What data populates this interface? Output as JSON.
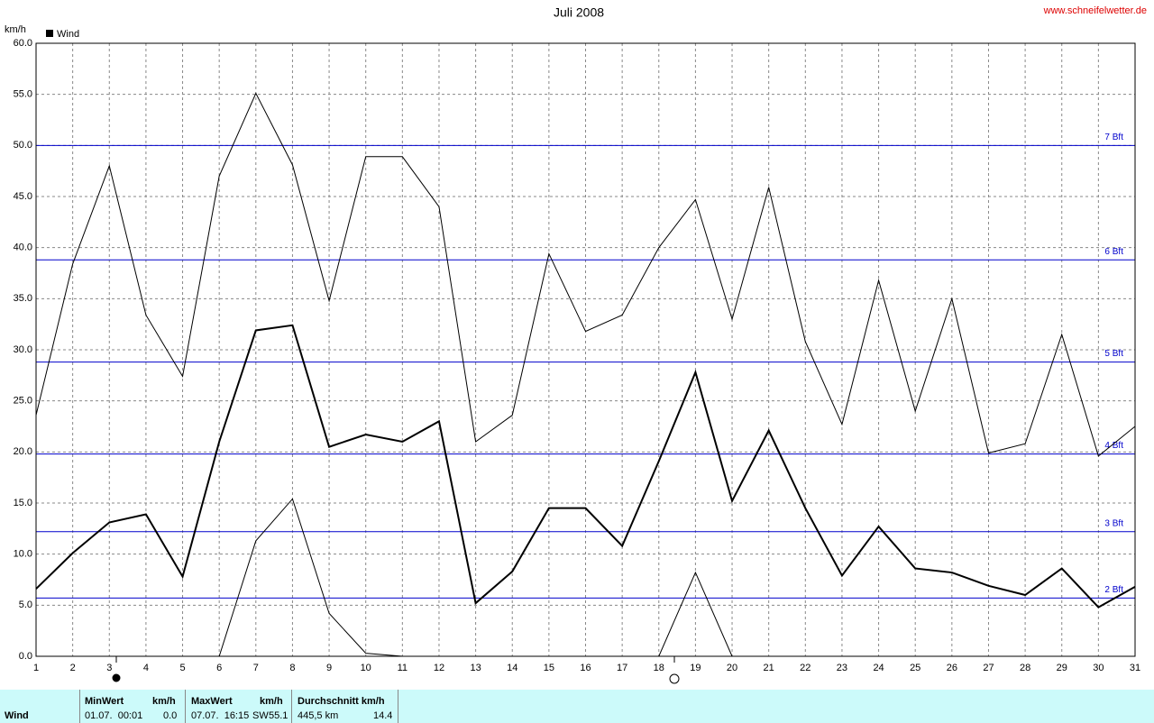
{
  "chart_data": {
    "type": "line",
    "title": "Juli 2008",
    "y_label": "km/h",
    "source": "www.schneifelwetter.de",
    "x": [
      1,
      2,
      3,
      4,
      5,
      6,
      7,
      8,
      9,
      10,
      11,
      12,
      13,
      14,
      15,
      16,
      17,
      18,
      19,
      20,
      21,
      22,
      23,
      24,
      25,
      26,
      27,
      28,
      29,
      30,
      31
    ],
    "series": [
      {
        "color": "#000000",
        "line_width": 1,
        "values": [
          23.6,
          38.4,
          48.0,
          33.4,
          27.4,
          47.0,
          55.1,
          48.1,
          34.8,
          48.9,
          48.9,
          44.0,
          21.0,
          23.6,
          39.4,
          31.8,
          33.4,
          40.0,
          44.7,
          33.0,
          45.9,
          30.8,
          22.7,
          36.8,
          24.0,
          35.0,
          19.9,
          20.8,
          31.5,
          19.6,
          22.5
        ]
      },
      {
        "name": "Wind",
        "color": "#000000",
        "line_width": 2,
        "values": [
          6.6,
          10.1,
          13.1,
          13.9,
          7.8,
          21.0,
          31.9,
          32.4,
          20.5,
          21.7,
          21.0,
          23.0,
          5.2,
          8.3,
          14.5,
          14.5,
          10.8,
          19.1,
          27.8,
          15.2,
          22.1,
          14.5,
          7.9,
          12.7,
          8.6,
          8.2,
          6.9,
          6.0,
          8.6,
          4.8,
          6.8
        ]
      },
      {
        "color": "#000000",
        "line_width": 1,
        "values": [
          0,
          0,
          0,
          0,
          0,
          0,
          11.3,
          15.4,
          4.2,
          0.3,
          0.0,
          0,
          0,
          0,
          0,
          0,
          0,
          0,
          8.2,
          0,
          0,
          0,
          0,
          0,
          0,
          0,
          0,
          0,
          0,
          0,
          0
        ]
      }
    ],
    "xlim": [
      1,
      31
    ],
    "xticks": [
      1,
      2,
      3,
      4,
      5,
      6,
      7,
      8,
      9,
      10,
      11,
      12,
      13,
      14,
      15,
      16,
      17,
      18,
      19,
      20,
      21,
      22,
      23,
      24,
      25,
      26,
      27,
      28,
      29,
      30,
      31
    ],
    "ylim": [
      0,
      60
    ],
    "yticks": [
      {
        "value": 0,
        "label": "0.0"
      },
      {
        "value": 5,
        "label": "5.0"
      },
      {
        "value": 10,
        "label": "10.0"
      },
      {
        "value": 15,
        "label": "15.0"
      },
      {
        "value": 20,
        "label": "20.0"
      },
      {
        "value": 25,
        "label": "25.0"
      },
      {
        "value": 30,
        "label": "30.0"
      },
      {
        "value": 35,
        "label": "35.0"
      },
      {
        "value": 40,
        "label": "40.0"
      },
      {
        "value": 45,
        "label": "45.0"
      },
      {
        "value": 50,
        "label": "50.0"
      },
      {
        "value": 55,
        "label": "55.0"
      },
      {
        "value": 60,
        "label": "60.0"
      }
    ],
    "grid": true,
    "reference_color": "#0000cc",
    "reference_lines": [
      {
        "value": 50.0,
        "label": "7 Bft"
      },
      {
        "value": 38.8,
        "label": "6 Bft"
      },
      {
        "value": 28.8,
        "label": "5 Bft"
      },
      {
        "value": 19.8,
        "label": "4 Bft"
      },
      {
        "value": 12.2,
        "label": "3 Bft"
      },
      {
        "value": 5.7,
        "label": "2 Bft"
      }
    ]
  },
  "summary": {
    "row_label": "Wind",
    "min": {
      "header": "MinWert",
      "unit": "km/h",
      "date": "01.07.  00:01",
      "value": "0.0"
    },
    "max": {
      "header": "MaxWert",
      "unit": "km/h",
      "date": "07.07.  16:15",
      "direction": "SW",
      "value": "55.1"
    },
    "mean": {
      "header": "Durchschnitt km/h",
      "total": "445,5 km",
      "value": "14.4"
    }
  }
}
